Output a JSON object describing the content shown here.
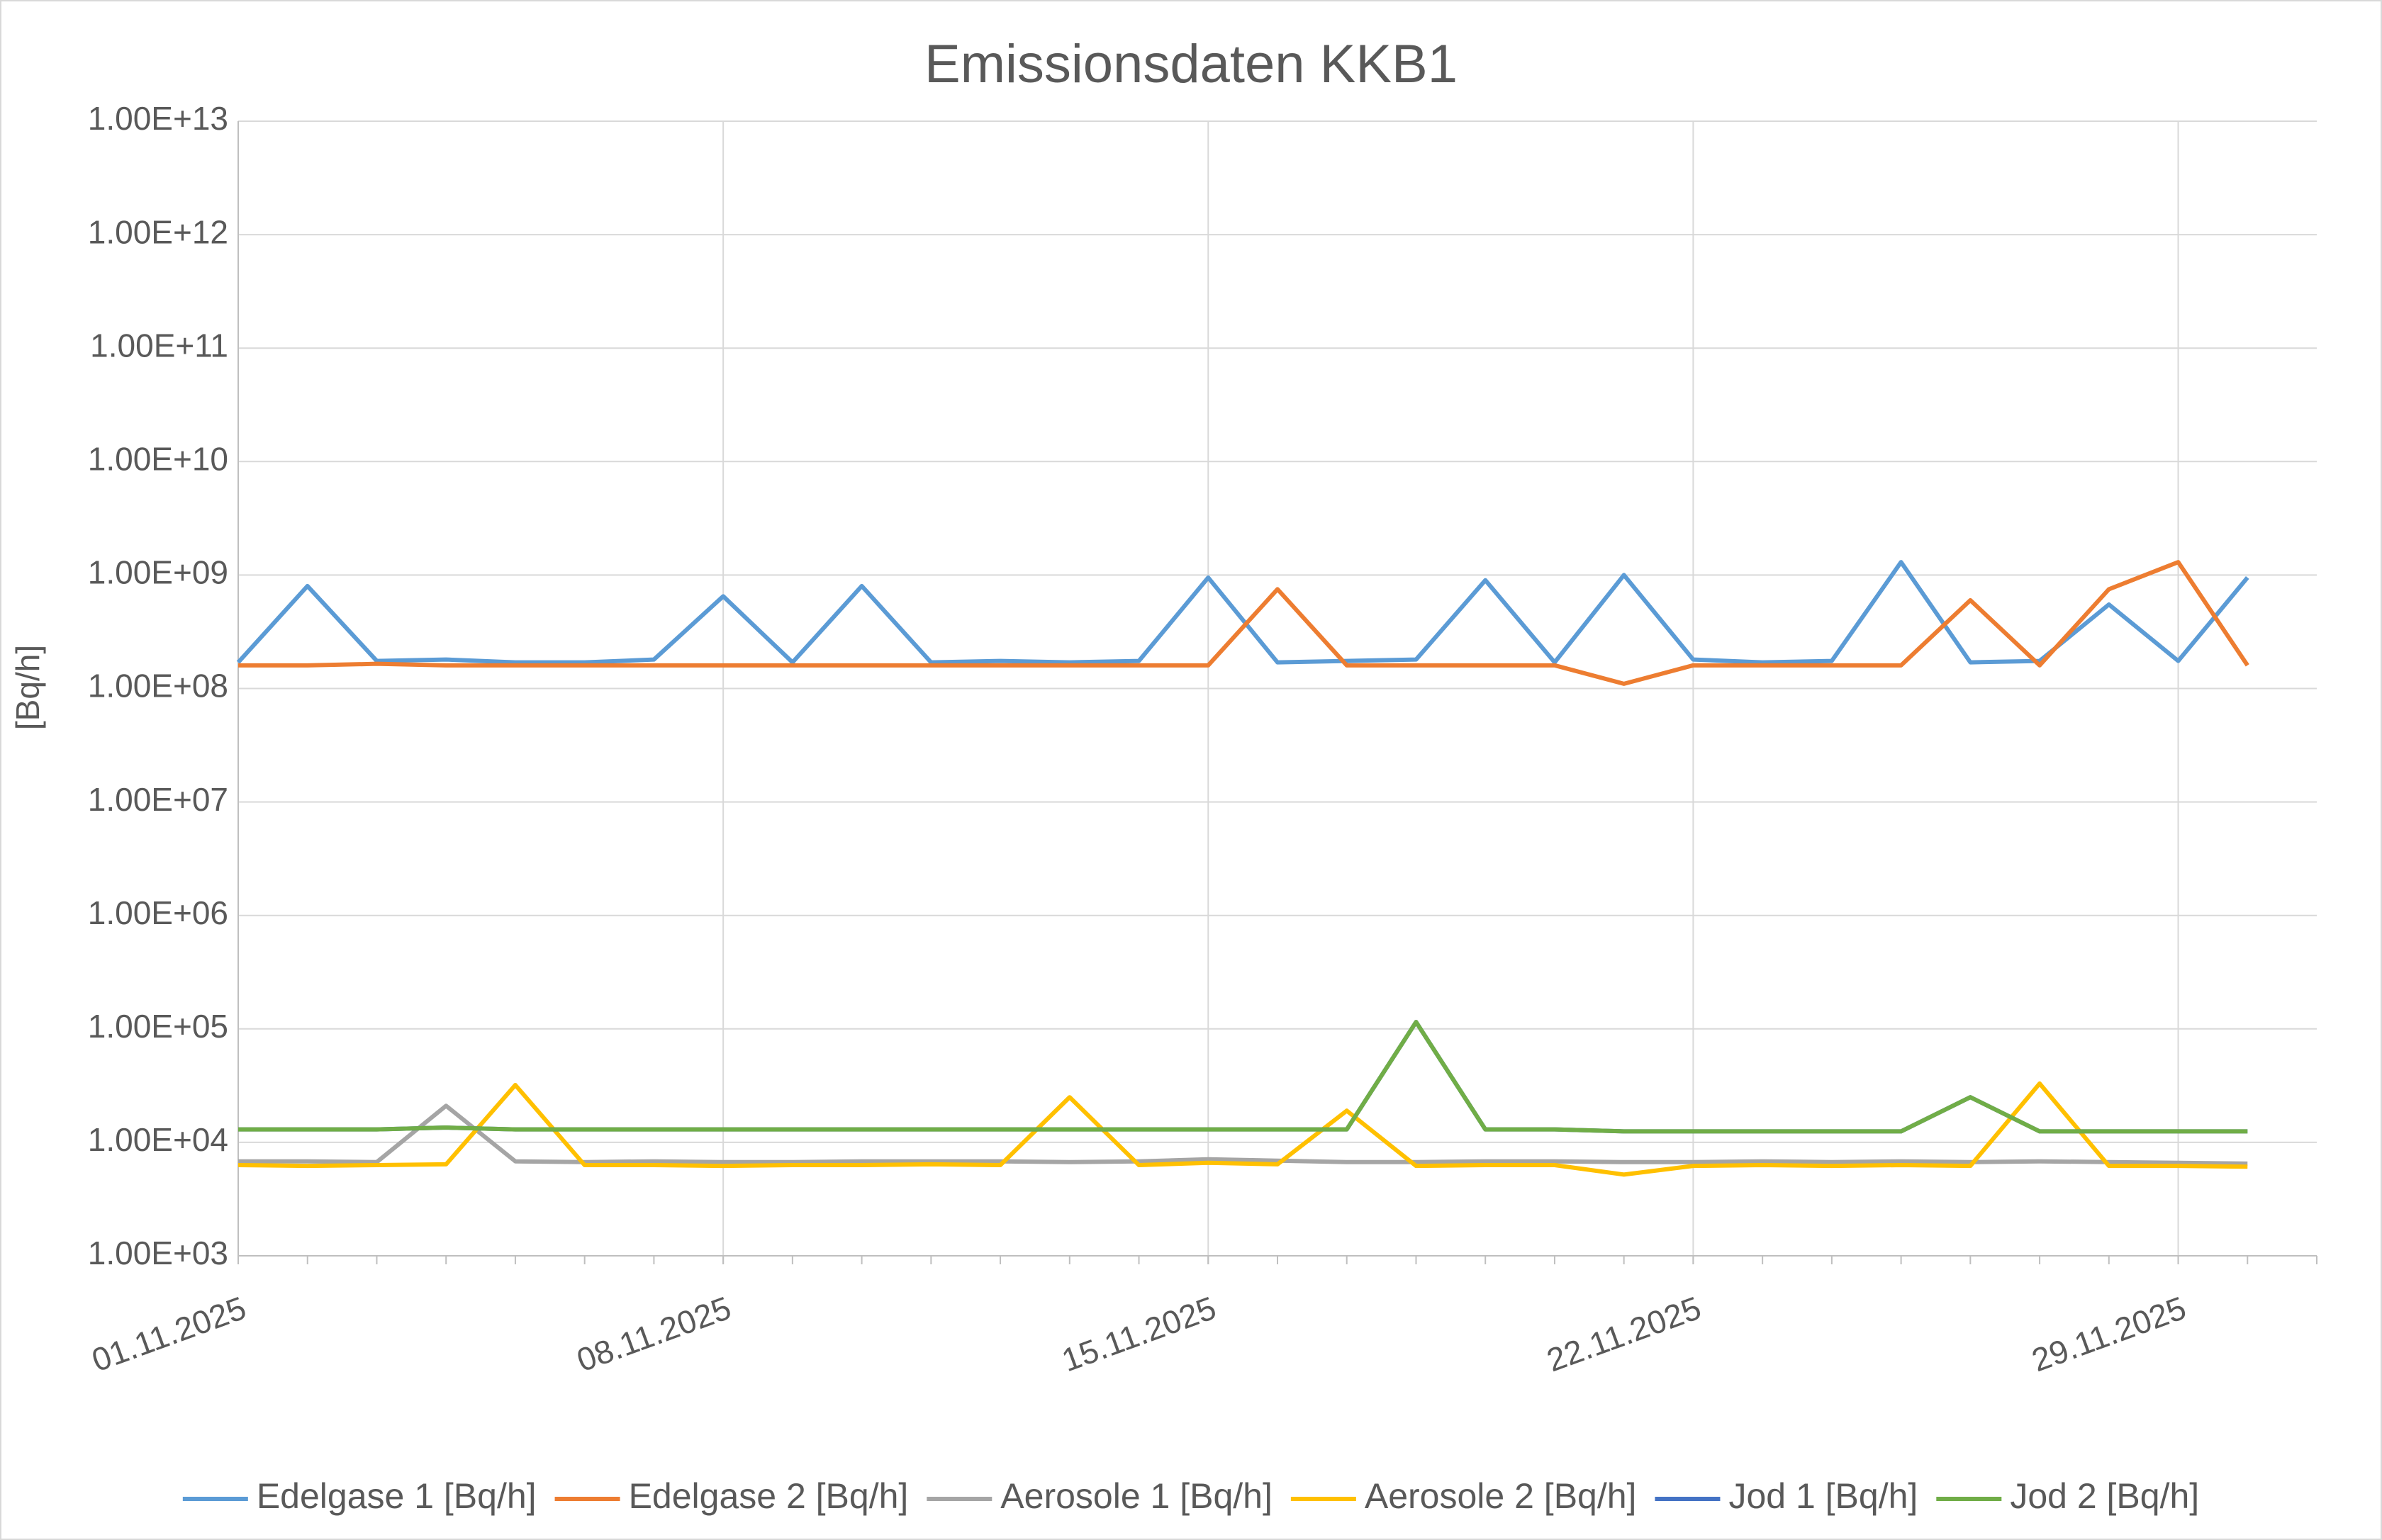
{
  "chart_data": {
    "type": "line",
    "title": "Emissionsdaten KKB1",
    "y_label": "[Bq/h]",
    "log_y": true,
    "grid": true,
    "legend": "bottom",
    "x": [
      "01.11.2025",
      "02.11.2025",
      "03.11.2025",
      "04.11.2025",
      "05.11.2025",
      "06.11.2025",
      "07.11.2025",
      "08.11.2025",
      "09.11.2025",
      "10.11.2025",
      "11.11.2025",
      "12.11.2025",
      "13.11.2025",
      "14.11.2025",
      "15.11.2025",
      "16.11.2025",
      "17.11.2025",
      "18.11.2025",
      "19.11.2025",
      "20.11.2025",
      "21.11.2025",
      "22.11.2025",
      "23.11.2025",
      "24.11.2025",
      "25.11.2025",
      "26.11.2025",
      "27.11.2025",
      "28.11.2025",
      "29.11.2025",
      "30.11.2025"
    ],
    "xlim": [
      "01.11.2025",
      "01.12.2025"
    ],
    "xticks": [
      "01.11.2025",
      "08.11.2025",
      "15.11.2025",
      "22.11.2025",
      "29.11.2025"
    ],
    "ylim": [
      1000,
      10000000000000
    ],
    "yticks": [
      {
        "value": 1000,
        "label": "1.00E+03"
      },
      {
        "value": 10000,
        "label": "1.00E+04"
      },
      {
        "value": 100000,
        "label": "1.00E+05"
      },
      {
        "value": 1000000,
        "label": "1.00E+06"
      },
      {
        "value": 10000000,
        "label": "1.00E+07"
      },
      {
        "value": 100000000,
        "label": "1.00E+08"
      },
      {
        "value": 1000000000,
        "label": "1.00E+09"
      },
      {
        "value": 10000000000,
        "label": "1.00E+10"
      },
      {
        "value": 100000000000,
        "label": "1.00E+11"
      },
      {
        "value": 1000000000000,
        "label": "1.00E+12"
      },
      {
        "value": 10000000000000,
        "label": "1.00E+13"
      }
    ],
    "series": [
      {
        "name": "Edelgase 1 [Bq/h]",
        "color": "#5b9bd5",
        "values": [
          170000000,
          800000000,
          175000000,
          180000000,
          170000000,
          170000000,
          180000000,
          650000000,
          170000000,
          800000000,
          170000000,
          175000000,
          170000000,
          175000000,
          950000000,
          170000000,
          175000000,
          180000000,
          900000000,
          170000000,
          1000000000,
          180000000,
          170000000,
          175000000,
          1300000000,
          170000000,
          175000000,
          550000000,
          175000000,
          950000000
        ]
      },
      {
        "name": "Edelgase 2 [Bq/h]",
        "color": "#ed7d31",
        "values": [
          160000000,
          160000000,
          165000000,
          160000000,
          160000000,
          160000000,
          160000000,
          160000000,
          160000000,
          160000000,
          160000000,
          160000000,
          160000000,
          160000000,
          160000000,
          750000000,
          160000000,
          160000000,
          160000000,
          160000000,
          110000000,
          160000000,
          160000000,
          160000000,
          160000000,
          600000000,
          160000000,
          750000000,
          1300000000,
          160000000
        ]
      },
      {
        "name": "Aerosole 1 [Bq/h]",
        "color": "#a5a5a5",
        "values": [
          6800,
          6800,
          6700,
          21000,
          6800,
          6700,
          6800,
          6700,
          6700,
          6800,
          6800,
          6800,
          6700,
          6800,
          7100,
          6900,
          6700,
          6700,
          6800,
          6800,
          6700,
          6700,
          6800,
          6700,
          6800,
          6700,
          6800,
          6700,
          6600,
          6500
        ]
      },
      {
        "name": "Aerosole 2 [Bq/h]",
        "color": "#ffc000",
        "values": [
          6300,
          6200,
          6300,
          6400,
          32000,
          6300,
          6300,
          6200,
          6300,
          6300,
          6400,
          6300,
          25000,
          6300,
          6600,
          6400,
          19000,
          6200,
          6300,
          6300,
          5200,
          6200,
          6300,
          6200,
          6300,
          6200,
          33000,
          6200,
          6200,
          6100
        ]
      },
      {
        "name": "Jod 1 [Bq/h]",
        "color": "#4472c4",
        "values": [
          13000,
          13000,
          13000,
          13500,
          13000,
          13000,
          13000,
          13000,
          13000,
          13000,
          13000,
          13000,
          13000,
          13000,
          13000,
          13000,
          13000,
          115000,
          13000,
          13000,
          12500,
          12500,
          12500,
          12500,
          12500,
          25000,
          12500,
          12500,
          12500,
          12500
        ]
      },
      {
        "name": "Jod 2 [Bq/h]",
        "color": "#70ad47",
        "values": [
          13000,
          13000,
          13000,
          13500,
          13000,
          13000,
          13000,
          13000,
          13000,
          13000,
          13000,
          13000,
          13000,
          13000,
          13000,
          13000,
          13000,
          115000,
          13000,
          13000,
          12500,
          12500,
          12500,
          12500,
          12500,
          25000,
          12500,
          12500,
          12500,
          12500
        ]
      }
    ]
  }
}
